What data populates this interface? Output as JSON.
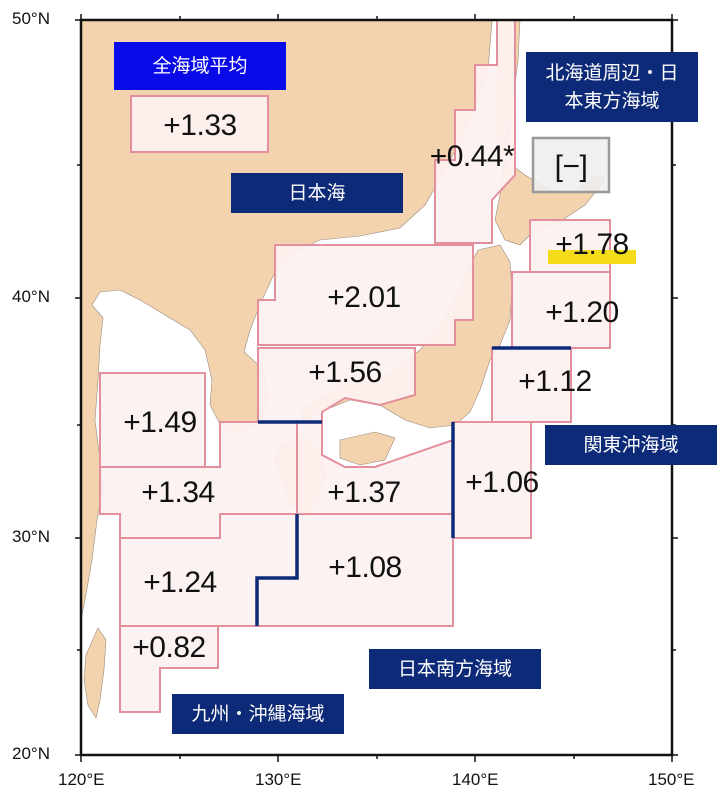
{
  "map": {
    "colors": {
      "land": "#f3d3ad",
      "region_fill": "#fdf1f1",
      "region_border": "#e4909c",
      "boundary": "#0d2a78",
      "label_bg": "#0d2a78",
      "overall_label_bg": "#0a0ae8",
      "highlight": "#f5dc1a",
      "no_data_fill": "#eeeeee",
      "no_data_border": "#999999"
    },
    "lat_ticks": [
      "50°N",
      "40°N",
      "30°N",
      "20°N"
    ],
    "lon_ticks": [
      "120°E",
      "130°E",
      "140°E",
      "150°E"
    ],
    "area_labels": {
      "overall": "全海域平均",
      "japan_sea": "日本海",
      "hokkaido_east": "北海道周辺・日本東方海域",
      "kanto": "関東沖海域",
      "south_japan": "日本南方海域",
      "kyushu_okinawa": "九州・沖縄海域"
    },
    "values": {
      "overall": "+1.33",
      "japan_sea_north": "+0.44*",
      "okhotsk": "[−]",
      "sanriku_north": "+1.78",
      "sanriku": "+1.20",
      "kanto_east": "+1.12",
      "japan_sea_central": "+2.01",
      "japan_sea_south": "+1.56",
      "yellow_sea": "+1.49",
      "east_china_sea_north": "+1.34",
      "shikoku_south": "+1.37",
      "kanto_south": "+1.06",
      "east_china_sea_south": "+1.24",
      "south_of_japan": "+1.08",
      "okinawa_south": "+0.82"
    }
  }
}
